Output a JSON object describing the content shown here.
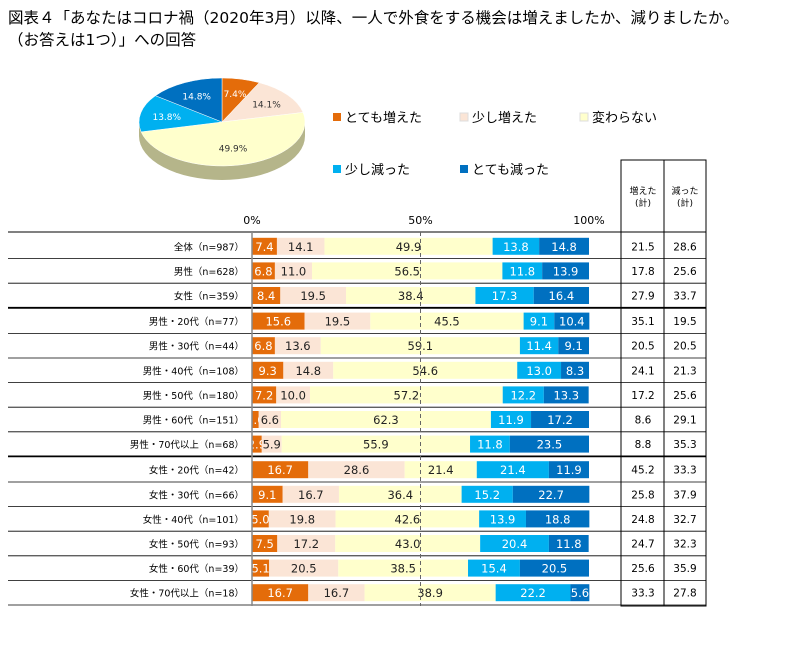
{
  "title_line1": "図表４「あなたはコロナ禍（2020年3月）以降、一人で外食をする機会は増えましたか、減りましたか。",
  "title_line2": "（お答えは1つ）」への回答",
  "chart_data": [
    {
      "type": "pie",
      "values": [
        7.4,
        14.1,
        49.9,
        13.8,
        14.8
      ],
      "labels": [
        "7.4%",
        "14.1%",
        "49.9%",
        "13.8%",
        "14.8%"
      ],
      "categories": [
        "とても増えた",
        "少し増えた",
        "変わらない",
        "少し減った",
        "とても減った"
      ]
    },
    {
      "type": "bar",
      "stacked": true,
      "orientation": "horizontal",
      "axis_ticks": [
        "0%",
        "50%",
        "100%"
      ],
      "xlim": [
        0,
        100
      ],
      "legend": [
        "とても増えた",
        "少し増えた",
        "変わらない",
        "少し減った",
        "とても減った"
      ],
      "colors": [
        "#E46C0A",
        "#FBE5D6",
        "#FFFFCC",
        "#00B0F0",
        "#0070C0"
      ],
      "table_headers": [
        "増えた\n(計)",
        "減った\n(計)"
      ],
      "rows": [
        {
          "label": "全体（n=987）",
          "values": [
            7.4,
            14.1,
            49.9,
            13.8,
            14.8
          ],
          "up": "21.5",
          "down": "28.6"
        },
        {
          "label": "男性（n=628）",
          "values": [
            6.8,
            11.0,
            56.5,
            11.8,
            13.9
          ],
          "up": "17.8",
          "down": "25.6"
        },
        {
          "label": "女性（n=359）",
          "values": [
            8.4,
            19.5,
            38.4,
            17.3,
            16.4
          ],
          "up": "27.9",
          "down": "33.7"
        },
        {
          "label": "男性・20代（n=77）",
          "values": [
            15.6,
            19.5,
            45.5,
            9.1,
            10.4
          ],
          "up": "35.1",
          "down": "19.5"
        },
        {
          "label": "男性・30代（n=44）",
          "values": [
            6.8,
            13.6,
            59.1,
            11.4,
            9.1
          ],
          "up": "20.5",
          "down": "20.5"
        },
        {
          "label": "男性・40代（n=108）",
          "values": [
            9.3,
            14.8,
            54.6,
            13.0,
            8.3
          ],
          "up": "24.1",
          "down": "21.3"
        },
        {
          "label": "男性・50代（n=180）",
          "values": [
            7.2,
            10.0,
            57.2,
            12.2,
            13.3
          ],
          "up": "17.2",
          "down": "25.6"
        },
        {
          "label": "男性・60代（n=151）",
          "values": [
            2.0,
            6.6,
            62.3,
            11.9,
            17.2
          ],
          "up": "8.6",
          "down": "29.1"
        },
        {
          "label": "男性・70代以上（n=68）",
          "values": [
            2.9,
            5.9,
            55.9,
            11.8,
            23.5
          ],
          "up": "8.8",
          "down": "35.3"
        },
        {
          "label": "女性・20代（n=42）",
          "values": [
            16.7,
            28.6,
            21.4,
            21.4,
            11.9
          ],
          "up": "45.2",
          "down": "33.3"
        },
        {
          "label": "女性・30代（n=66）",
          "values": [
            9.1,
            16.7,
            36.4,
            15.2,
            22.7
          ],
          "up": "25.8",
          "down": "37.9"
        },
        {
          "label": "女性・40代（n=101）",
          "values": [
            5.0,
            19.8,
            42.6,
            13.9,
            18.8
          ],
          "up": "24.8",
          "down": "32.7"
        },
        {
          "label": "女性・50代（n=93）",
          "values": [
            7.5,
            17.2,
            43.0,
            20.4,
            11.8
          ],
          "up": "24.7",
          "down": "32.3"
        },
        {
          "label": "女性・60代（n=39）",
          "values": [
            5.1,
            20.5,
            38.5,
            15.4,
            20.5
          ],
          "up": "25.6",
          "down": "35.9"
        },
        {
          "label": "女性・70代以上（n=18）",
          "values": [
            16.7,
            16.7,
            38.9,
            22.2,
            5.6
          ],
          "up": "33.3",
          "down": "27.8"
        }
      ]
    }
  ]
}
